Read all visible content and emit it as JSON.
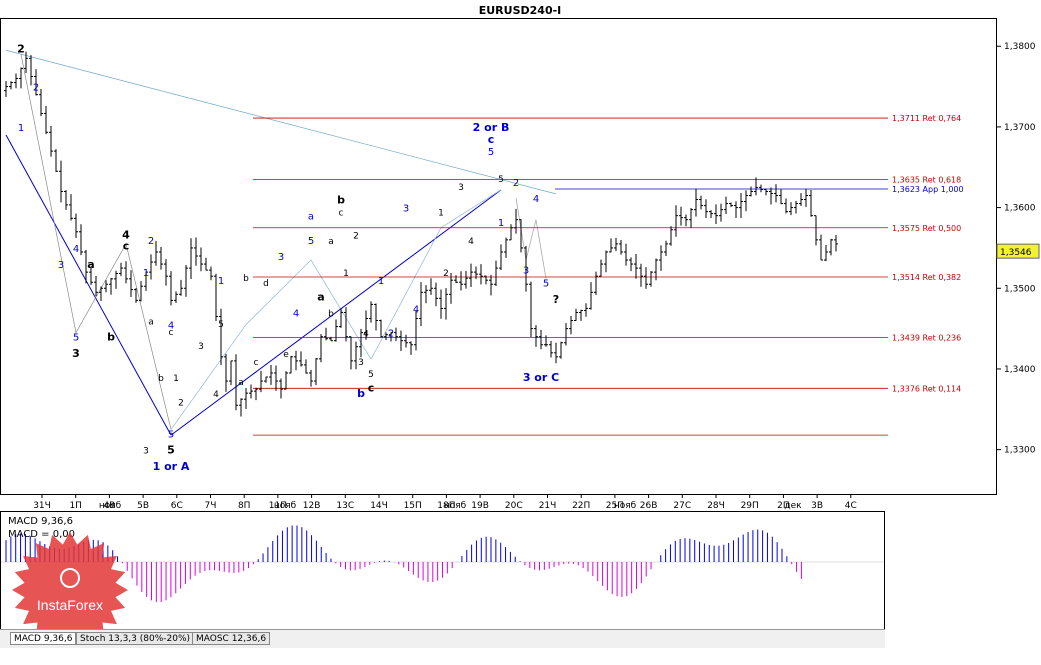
{
  "chart_data": {
    "title": "EURUSD240-I",
    "type": "line",
    "price_ylim": [
      1.3245,
      1.3835
    ],
    "price_ticks": [
      "1,3800",
      "1,3700",
      "1,3600",
      "1,3500",
      "1,3400",
      "1,3300"
    ],
    "current_price": {
      "label": "1,3546",
      "value": 1.3546
    },
    "x_ticks": [
      "31Ч",
      "1П",
      "4В",
      "5В",
      "6С",
      "7Ч",
      "8П",
      "11П",
      "12В",
      "13С",
      "14Ч",
      "15П",
      "18П",
      "19В",
      "20С",
      "21Ч",
      "22П",
      "25П",
      "26В",
      "27С",
      "28Ч",
      "29П",
      "2П",
      "3В",
      "4С"
    ],
    "month_labels": [
      "нояб",
      "нояб",
      "нояб",
      "нояб",
      "дек"
    ],
    "fib_levels": [
      {
        "price": 1.3711,
        "label": "1,3711 Ret 0,764"
      },
      {
        "price": 1.3635,
        "label": "1,3635 Ret 0,618"
      },
      {
        "price": 1.3575,
        "label": "1,3575 Ret 0,500"
      },
      {
        "price": 1.3514,
        "label": "1,3514 Ret 0,382"
      },
      {
        "price": 1.3439,
        "label": "1,3439 Ret 0,236"
      },
      {
        "price": 1.3376,
        "label": "1,3376 Ret 0,114"
      }
    ],
    "app_level": {
      "price": 1.3623,
      "label": "1,3623 App 1,000"
    },
    "price_path": [
      [
        0,
        1.3745
      ],
      [
        3,
        1.376
      ],
      [
        5,
        1.3785
      ],
      [
        7,
        1.374
      ],
      [
        10,
        1.367
      ],
      [
        12,
        1.362
      ],
      [
        15,
        1.357
      ],
      [
        17,
        1.352
      ],
      [
        19,
        1.3495
      ],
      [
        21,
        1.3505
      ],
      [
        24,
        1.3525
      ],
      [
        27,
        1.3485
      ],
      [
        29,
        1.352
      ],
      [
        31,
        1.3545
      ],
      [
        33,
        1.3515
      ],
      [
        34,
        1.3485
      ],
      [
        36,
        1.35
      ],
      [
        38,
        1.355
      ],
      [
        40,
        1.353
      ],
      [
        42,
        1.3515
      ],
      [
        43,
        1.3465
      ],
      [
        44,
        1.3415
      ],
      [
        45,
        1.3385
      ],
      [
        46,
        1.341
      ],
      [
        47,
        1.3355
      ],
      [
        49,
        1.337
      ],
      [
        51,
        1.3375
      ],
      [
        52,
        1.3385
      ],
      [
        54,
        1.3395
      ],
      [
        56,
        1.3375
      ],
      [
        58,
        1.3415
      ],
      [
        60,
        1.3405
      ],
      [
        62,
        1.3385
      ],
      [
        64,
        1.344
      ],
      [
        66,
        1.3435
      ],
      [
        68,
        1.347
      ],
      [
        70,
        1.341
      ],
      [
        72,
        1.3445
      ],
      [
        74,
        1.348
      ],
      [
        76,
        1.344
      ],
      [
        78,
        1.3445
      ],
      [
        80,
        1.3435
      ],
      [
        82,
        1.343
      ],
      [
        84,
        1.3495
      ],
      [
        86,
        1.35
      ],
      [
        88,
        1.3475
      ],
      [
        90,
        1.351
      ],
      [
        92,
        1.3505
      ],
      [
        94,
        1.352
      ],
      [
        96,
        1.3515
      ],
      [
        98,
        1.3505
      ],
      [
        100,
        1.3545
      ],
      [
        102,
        1.3575
      ],
      [
        103,
        1.3585
      ],
      [
        104,
        1.355
      ],
      [
        105,
        1.3505
      ],
      [
        106,
        1.345
      ],
      [
        107,
        1.344
      ],
      [
        108,
        1.343
      ],
      [
        109,
        1.343
      ],
      [
        110,
        1.342
      ],
      [
        111,
        1.3415
      ],
      [
        113,
        1.345
      ],
      [
        115,
        1.347
      ],
      [
        117,
        1.3475
      ],
      [
        119,
        1.3515
      ],
      [
        121,
        1.3545
      ],
      [
        123,
        1.3555
      ],
      [
        125,
        1.3535
      ],
      [
        127,
        1.3525
      ],
      [
        129,
        1.3505
      ],
      [
        131,
        1.3535
      ],
      [
        133,
        1.3555
      ],
      [
        135,
        1.359
      ],
      [
        137,
        1.3585
      ],
      [
        139,
        1.361
      ],
      [
        141,
        1.3595
      ],
      [
        143,
        1.359
      ],
      [
        145,
        1.3605
      ],
      [
        147,
        1.36
      ],
      [
        149,
        1.3615
      ],
      [
        151,
        1.3625
      ],
      [
        153,
        1.362
      ],
      [
        155,
        1.3615
      ],
      [
        157,
        1.3595
      ],
      [
        159,
        1.3605
      ],
      [
        161,
        1.3615
      ],
      [
        162,
        1.359
      ],
      [
        163,
        1.356
      ],
      [
        164,
        1.3535
      ],
      [
        165,
        1.3545
      ],
      [
        166,
        1.356
      ],
      [
        167,
        1.3555
      ]
    ],
    "wave_labels_blue": [
      {
        "text": "1",
        "x": 3,
        "y": 1.3695
      },
      {
        "text": "2",
        "x": 6,
        "y": 1.3745
      },
      {
        "text": "3",
        "x": 11,
        "y": 1.3525
      },
      {
        "text": "4",
        "x": 14,
        "y": 1.3545
      },
      {
        "text": "5",
        "x": 14,
        "y": 1.3435
      },
      {
        "text": "1",
        "x": 28,
        "y": 1.3515
      },
      {
        "text": "2",
        "x": 29,
        "y": 1.3555
      },
      {
        "text": "4",
        "x": 33,
        "y": 1.345
      },
      {
        "text": "5",
        "x": 33,
        "y": 1.3315
      },
      {
        "text": "1 or A",
        "x": 33,
        "y": 1.3275,
        "bold": true
      },
      {
        "text": "1",
        "x": 43,
        "y": 1.3505
      },
      {
        "text": "3",
        "x": 55,
        "y": 1.3535
      },
      {
        "text": "4",
        "x": 58,
        "y": 1.3465
      },
      {
        "text": "a",
        "x": 61,
        "y": 1.3585
      },
      {
        "text": "5",
        "x": 61,
        "y": 1.3555
      },
      {
        "text": "b",
        "x": 71,
        "y": 1.3365,
        "bold": true
      },
      {
        "text": "1",
        "x": 75,
        "y": 1.3505
      },
      {
        "text": "2",
        "x": 77,
        "y": 1.344
      },
      {
        "text": "3",
        "x": 80,
        "y": 1.3595
      },
      {
        "text": "4",
        "x": 82,
        "y": 1.347
      },
      {
        "text": "2 or B",
        "x": 97,
        "y": 1.3695,
        "bold": true
      },
      {
        "text": "c",
        "x": 97,
        "y": 1.368,
        "bold": true
      },
      {
        "text": "5",
        "x": 97,
        "y": 1.3665
      },
      {
        "text": "2",
        "x": 102,
        "y": 1.3627
      },
      {
        "text": "1",
        "x": 99,
        "y": 1.3577
      },
      {
        "text": "3",
        "x": 104,
        "y": 1.3518
      },
      {
        "text": "4",
        "x": 106,
        "y": 1.3607
      },
      {
        "text": "5",
        "x": 108,
        "y": 1.3502
      },
      {
        "text": "3 or C",
        "x": 107,
        "y": 1.3385,
        "bold": true
      }
    ],
    "wave_labels_black": [
      {
        "text": "2",
        "x": 3,
        "y": 1.3792,
        "bold": true
      },
      {
        "text": "3",
        "x": 14,
        "y": 1.3415,
        "bold": true
      },
      {
        "text": "a",
        "x": 17,
        "y": 1.3525,
        "bold": true
      },
      {
        "text": "b",
        "x": 21,
        "y": 1.3435,
        "bold": true
      },
      {
        "text": "4",
        "x": 24,
        "y": 1.3562,
        "bold": true
      },
      {
        "text": "c",
        "x": 24,
        "y": 1.3548,
        "bold": true
      },
      {
        "text": "a",
        "x": 29,
        "y": 1.3455
      },
      {
        "text": "c",
        "x": 33,
        "y": 1.3442
      },
      {
        "text": "b",
        "x": 31,
        "y": 1.3385
      },
      {
        "text": "3",
        "x": 28,
        "y": 1.3295
      },
      {
        "text": "5",
        "x": 33,
        "y": 1.3295,
        "bold": true
      },
      {
        "text": "1",
        "x": 34,
        "y": 1.3385
      },
      {
        "text": "2",
        "x": 35,
        "y": 1.3355
      },
      {
        "text": "3",
        "x": 39,
        "y": 1.3425
      },
      {
        "text": "4",
        "x": 42,
        "y": 1.3365
      },
      {
        "text": "5",
        "x": 43,
        "y": 1.3452
      },
      {
        "text": "b",
        "x": 48,
        "y": 1.3509
      },
      {
        "text": "c",
        "x": 50,
        "y": 1.3405
      },
      {
        "text": "a",
        "x": 47,
        "y": 1.338
      },
      {
        "text": "d",
        "x": 52,
        "y": 1.3503
      },
      {
        "text": "e",
        "x": 56,
        "y": 1.3415
      },
      {
        "text": "a",
        "x": 63,
        "y": 1.3485,
        "bold": true
      },
      {
        "text": "a",
        "x": 65,
        "y": 1.3555
      },
      {
        "text": "b",
        "x": 65,
        "y": 1.3465
      },
      {
        "text": "b",
        "x": 67,
        "y": 1.3605,
        "bold": true
      },
      {
        "text": "c",
        "x": 67,
        "y": 1.359
      },
      {
        "text": "1",
        "x": 68,
        "y": 1.3515
      },
      {
        "text": "2",
        "x": 70,
        "y": 1.3562
      },
      {
        "text": "3",
        "x": 71,
        "y": 1.3405
      },
      {
        "text": "4",
        "x": 72,
        "y": 1.344
      },
      {
        "text": "5",
        "x": 73,
        "y": 1.339
      },
      {
        "text": "c",
        "x": 73,
        "y": 1.3372,
        "bold": true
      },
      {
        "text": "1",
        "x": 87,
        "y": 1.359
      },
      {
        "text": "2",
        "x": 88,
        "y": 1.3515
      },
      {
        "text": "3",
        "x": 91,
        "y": 1.3622
      },
      {
        "text": "4",
        "x": 93,
        "y": 1.3555
      },
      {
        "text": "5",
        "x": 99,
        "y": 1.3632
      },
      {
        "text": "?",
        "x": 110,
        "y": 1.3482,
        "bold": true
      }
    ],
    "macd": {
      "label": "MACD 9,36,6",
      "signal_label": "MACD = 0,00"
    },
    "indicator_tabs": [
      "MACD 9,36,6",
      "Stoch 13,3,3 (80%-20%)",
      "MAOSC 12,36,6"
    ],
    "brand": "InstaForex"
  }
}
